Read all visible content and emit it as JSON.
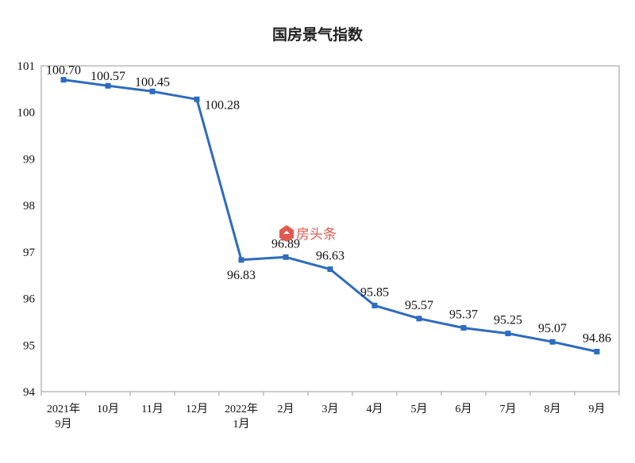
{
  "watermark": {
    "text": "房头条",
    "icon": "house-logo-icon",
    "color": "#e15a50"
  },
  "chart_data": {
    "type": "line",
    "title": "国房景气指数",
    "xlabel": "",
    "ylabel": "",
    "categories": [
      [
        "2021年",
        "9月"
      ],
      [
        "10月"
      ],
      [
        "11月"
      ],
      [
        "12月"
      ],
      [
        "2022年",
        "1月"
      ],
      [
        "2月"
      ],
      [
        "3月"
      ],
      [
        "4月"
      ],
      [
        "5月"
      ],
      [
        "6月"
      ],
      [
        "7月"
      ],
      [
        "8月"
      ],
      [
        "9月"
      ]
    ],
    "values": [
      100.7,
      100.57,
      100.45,
      100.28,
      96.83,
      96.89,
      96.63,
      95.85,
      95.57,
      95.37,
      95.25,
      95.07,
      94.86
    ],
    "value_labels": [
      "100.70",
      "100.57",
      "100.45",
      "100.28",
      "96.83",
      "96.89",
      "96.63",
      "95.85",
      "95.57",
      "95.37",
      "95.25",
      "95.07",
      "94.86"
    ],
    "ylim": [
      94,
      101
    ],
    "yticks": [
      94,
      95,
      96,
      97,
      98,
      99,
      100,
      101
    ],
    "grid": false,
    "line_color": "#2e6bc1"
  }
}
